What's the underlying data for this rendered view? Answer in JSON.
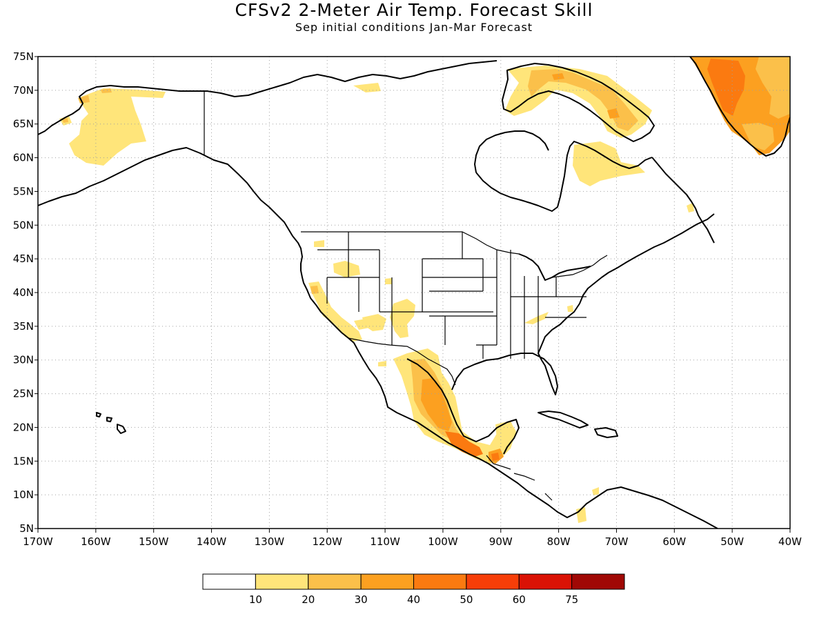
{
  "header": {
    "title": "CFSv2 2-Meter Air Temp. Forecast Skill",
    "subtitle": "Sep initial conditions  Jan-Mar Forecast"
  },
  "map": {
    "projection": "cylindrical equidistant",
    "lon_range": [
      -170,
      -40
    ],
    "lat_range": [
      5,
      75
    ],
    "grid": "dotted",
    "lat_ticks": [
      "5N",
      "10N",
      "15N",
      "20N",
      "25N",
      "30N",
      "35N",
      "40N",
      "45N",
      "50N",
      "55N",
      "60N",
      "65N",
      "70N",
      "75N"
    ],
    "lon_ticks": [
      "170W",
      "160W",
      "150W",
      "140W",
      "130W",
      "120W",
      "110W",
      "100W",
      "90W",
      "80W",
      "70W",
      "60W",
      "50W",
      "40W"
    ],
    "skill_regions": [
      {
        "name": "Alaska interior",
        "level": 1
      },
      {
        "name": "Northern Baffin Island",
        "level": 2
      },
      {
        "name": "Northern Quebec",
        "level": 1
      },
      {
        "name": "Greenland",
        "level": 3
      },
      {
        "name": "California and Nevada",
        "level": 1
      },
      {
        "name": "Arizona and New Mexico",
        "level": 1
      },
      {
        "name": "Mexico",
        "level": 3
      },
      {
        "name": "Southern Mexico",
        "level": 5
      },
      {
        "name": "Yucatan",
        "level": 2
      },
      {
        "name": "Tennessee",
        "level": 1
      }
    ]
  },
  "legend": {
    "colors": [
      "#ffffff",
      "#ffe57a",
      "#fbc04a",
      "#fca020",
      "#fb7a10",
      "#f73e08",
      "#da1205",
      "#a00805"
    ],
    "labels": [
      "10",
      "20",
      "30",
      "40",
      "50",
      "60",
      "75"
    ]
  }
}
